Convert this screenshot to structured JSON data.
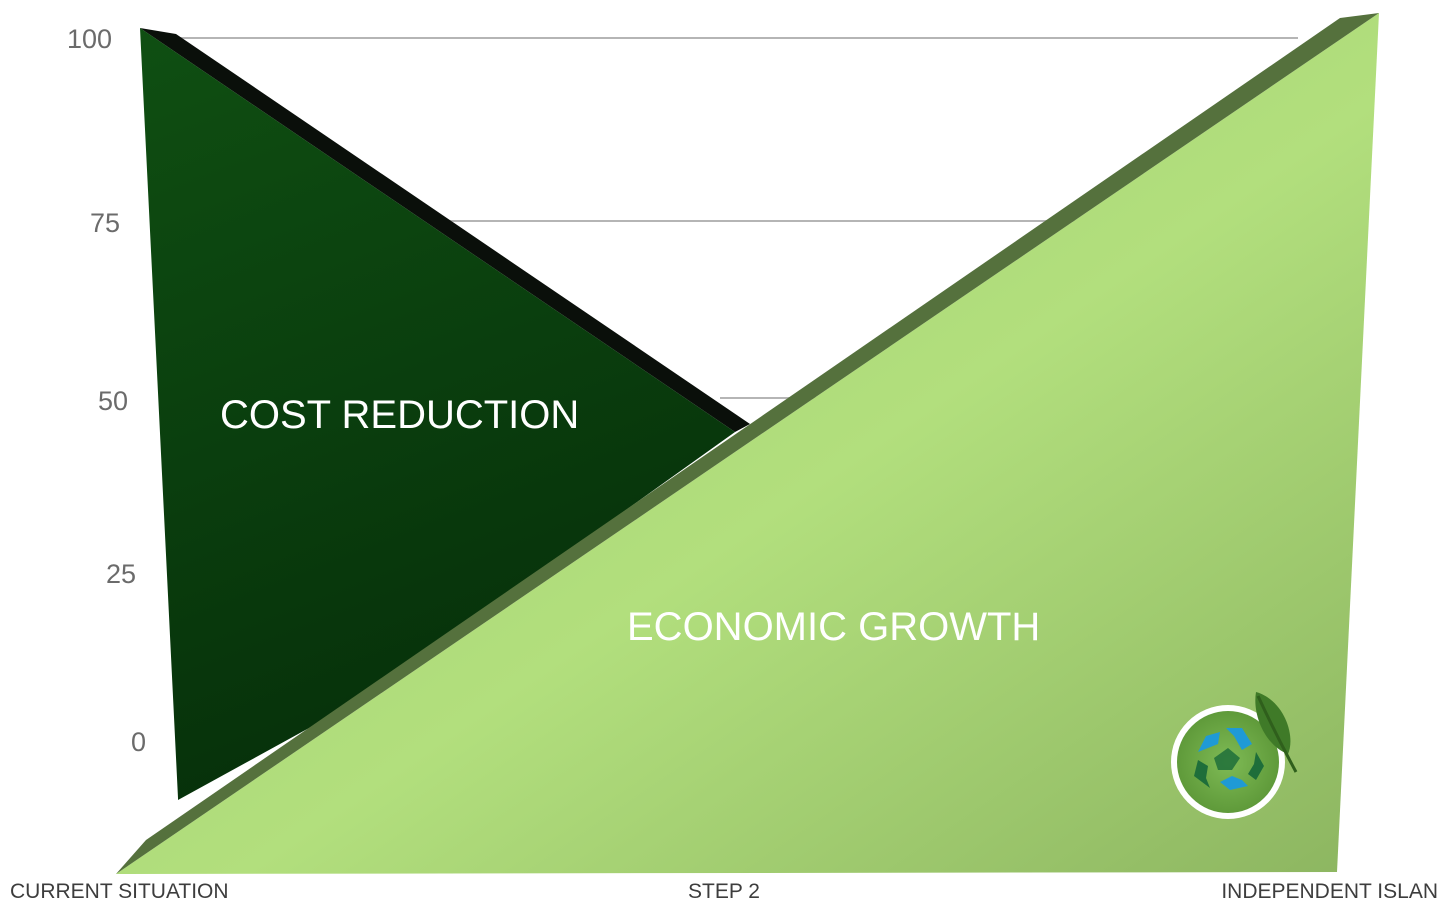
{
  "chart_data": {
    "type": "area",
    "title": "",
    "xlabel": "",
    "ylabel": "",
    "categories": [
      "CURRENT SITUATION",
      "STEP 2",
      "INDEPENDENT ISLAN"
    ],
    "y_ticks": [
      "100",
      "75",
      "50",
      "25",
      "0"
    ],
    "ylim": [
      0,
      100
    ],
    "grid": true,
    "series": [
      {
        "name": "COST REDUCTION",
        "values": [
          100,
          50,
          0
        ],
        "color": "#0d4410"
      },
      {
        "name": "ECONOMIC GROWTH",
        "values": [
          0,
          50,
          100
        ],
        "color": "#a3cf6e"
      }
    ],
    "logo_icon": "recycle-leaf-icon"
  }
}
